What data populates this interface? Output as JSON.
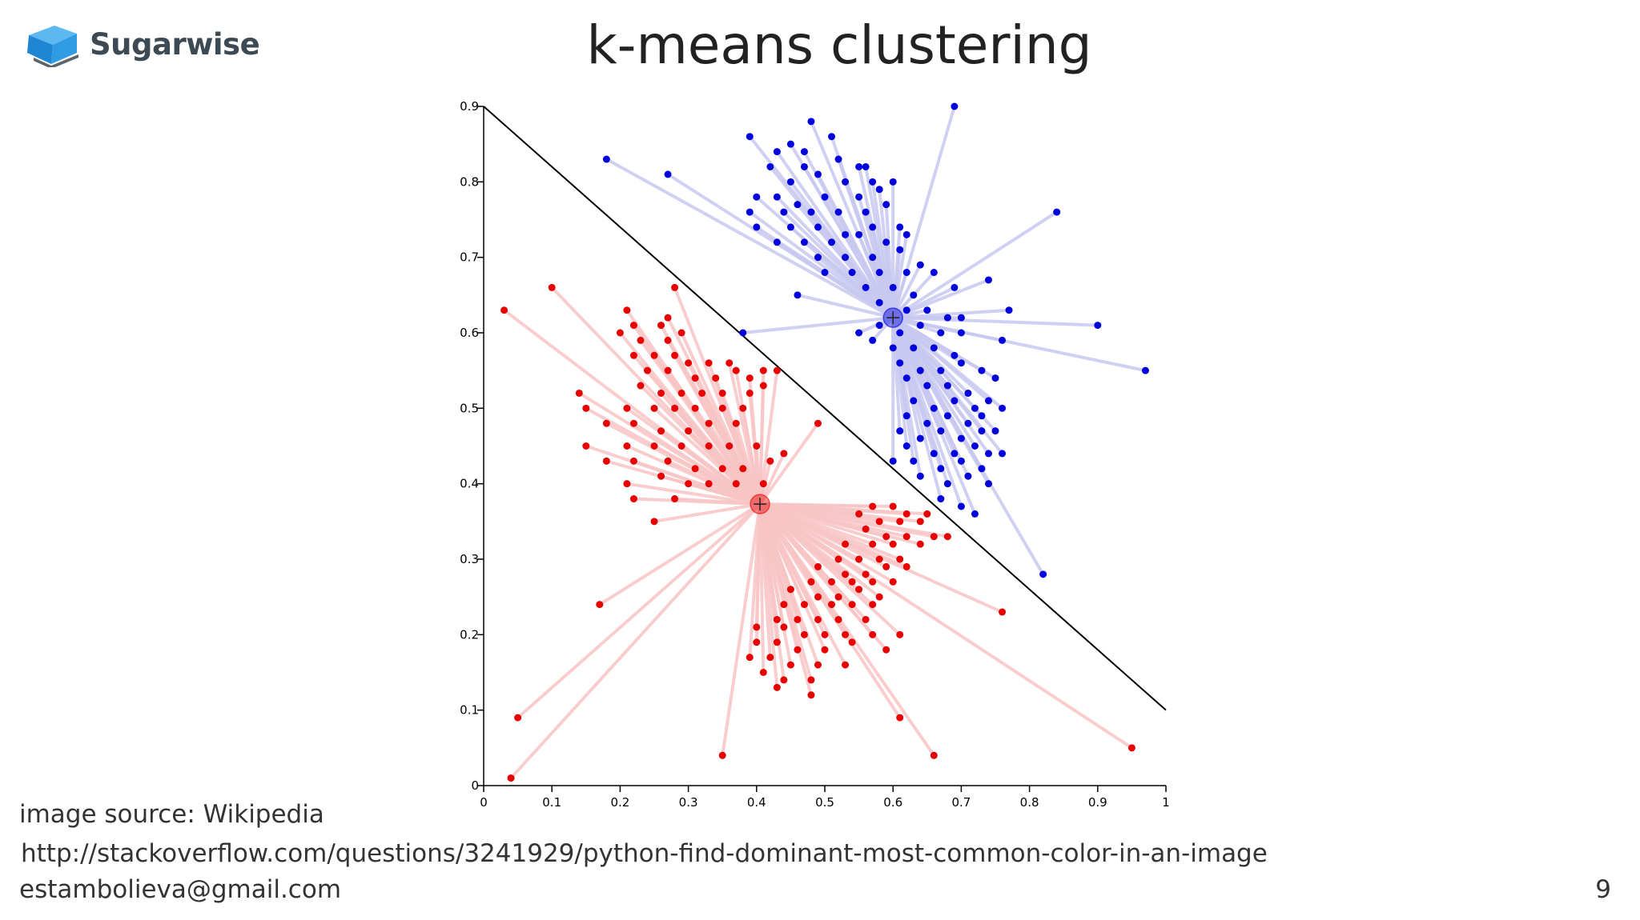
{
  "slide": {
    "brand": "Sugarwise",
    "title": "k-means clustering",
    "image_source": "image source: Wikipedia",
    "url": "http://stackoverflow.com/questions/3241929/python-find-dominant-most-common-color-in-an-image",
    "email": "estambolieva@gmail.com",
    "page_number": "9"
  },
  "colors": {
    "cluster_blue": "#0000dd",
    "cluster_red": "#e80000",
    "line_blue": "#c8c8f0",
    "line_red": "#f8c4c4",
    "boundary": "#000000"
  },
  "chart_data": {
    "type": "scatter",
    "xlim": [
      0,
      1
    ],
    "ylim": [
      0,
      0.9
    ],
    "x_ticks": [
      "0",
      "0.1",
      "0.2",
      "0.3",
      "0.4",
      "0.5",
      "0.6",
      "0.7",
      "0.8",
      "0.9",
      "1"
    ],
    "y_ticks": [
      "0",
      "0.1",
      "0.2",
      "0.3",
      "0.4",
      "0.5",
      "0.6",
      "0.7",
      "0.8",
      "0.9"
    ],
    "boundary": [
      [
        0,
        0.9
      ],
      [
        1,
        0.1
      ]
    ],
    "series": [
      {
        "color": "#0000dd",
        "centroid": [
          0.6,
          0.62
        ],
        "points": [
          [
            0.69,
            0.9
          ],
          [
            0.48,
            0.88
          ],
          [
            0.39,
            0.86
          ],
          [
            0.45,
            0.85
          ],
          [
            0.51,
            0.86
          ],
          [
            0.47,
            0.84
          ],
          [
            0.43,
            0.84
          ],
          [
            0.47,
            0.82
          ],
          [
            0.52,
            0.83
          ],
          [
            0.55,
            0.82
          ],
          [
            0.56,
            0.82
          ],
          [
            0.18,
            0.83
          ],
          [
            0.27,
            0.81
          ],
          [
            0.42,
            0.82
          ],
          [
            0.45,
            0.8
          ],
          [
            0.49,
            0.81
          ],
          [
            0.53,
            0.8
          ],
          [
            0.57,
            0.8
          ],
          [
            0.4,
            0.78
          ],
          [
            0.43,
            0.78
          ],
          [
            0.46,
            0.77
          ],
          [
            0.5,
            0.78
          ],
          [
            0.55,
            0.78
          ],
          [
            0.58,
            0.79
          ],
          [
            0.6,
            0.8
          ],
          [
            0.39,
            0.76
          ],
          [
            0.44,
            0.76
          ],
          [
            0.48,
            0.76
          ],
          [
            0.52,
            0.76
          ],
          [
            0.56,
            0.76
          ],
          [
            0.59,
            0.77
          ],
          [
            0.84,
            0.76
          ],
          [
            0.4,
            0.74
          ],
          [
            0.45,
            0.74
          ],
          [
            0.49,
            0.74
          ],
          [
            0.53,
            0.73
          ],
          [
            0.57,
            0.74
          ],
          [
            0.61,
            0.74
          ],
          [
            0.43,
            0.72
          ],
          [
            0.47,
            0.72
          ],
          [
            0.51,
            0.72
          ],
          [
            0.55,
            0.73
          ],
          [
            0.59,
            0.72
          ],
          [
            0.62,
            0.73
          ],
          [
            0.49,
            0.7
          ],
          [
            0.53,
            0.7
          ],
          [
            0.57,
            0.7
          ],
          [
            0.61,
            0.71
          ],
          [
            0.64,
            0.69
          ],
          [
            0.5,
            0.68
          ],
          [
            0.54,
            0.68
          ],
          [
            0.58,
            0.68
          ],
          [
            0.62,
            0.68
          ],
          [
            0.66,
            0.68
          ],
          [
            0.74,
            0.67
          ],
          [
            0.46,
            0.65
          ],
          [
            0.56,
            0.66
          ],
          [
            0.6,
            0.66
          ],
          [
            0.63,
            0.65
          ],
          [
            0.69,
            0.66
          ],
          [
            0.58,
            0.64
          ],
          [
            0.62,
            0.63
          ],
          [
            0.65,
            0.63
          ],
          [
            0.68,
            0.62
          ],
          [
            0.7,
            0.62
          ],
          [
            0.77,
            0.63
          ],
          [
            0.38,
            0.6
          ],
          [
            0.55,
            0.6
          ],
          [
            0.58,
            0.61
          ],
          [
            0.61,
            0.6
          ],
          [
            0.64,
            0.61
          ],
          [
            0.67,
            0.6
          ],
          [
            0.7,
            0.6
          ],
          [
            0.9,
            0.61
          ],
          [
            0.57,
            0.59
          ],
          [
            0.6,
            0.58
          ],
          [
            0.63,
            0.58
          ],
          [
            0.66,
            0.58
          ],
          [
            0.69,
            0.57
          ],
          [
            0.76,
            0.59
          ],
          [
            0.61,
            0.56
          ],
          [
            0.64,
            0.55
          ],
          [
            0.67,
            0.55
          ],
          [
            0.7,
            0.56
          ],
          [
            0.73,
            0.55
          ],
          [
            0.62,
            0.54
          ],
          [
            0.65,
            0.53
          ],
          [
            0.68,
            0.53
          ],
          [
            0.71,
            0.52
          ],
          [
            0.75,
            0.54
          ],
          [
            0.97,
            0.55
          ],
          [
            0.63,
            0.51
          ],
          [
            0.66,
            0.5
          ],
          [
            0.69,
            0.51
          ],
          [
            0.72,
            0.5
          ],
          [
            0.74,
            0.51
          ],
          [
            0.62,
            0.49
          ],
          [
            0.65,
            0.48
          ],
          [
            0.68,
            0.49
          ],
          [
            0.71,
            0.48
          ],
          [
            0.73,
            0.49
          ],
          [
            0.76,
            0.5
          ],
          [
            0.61,
            0.47
          ],
          [
            0.64,
            0.46
          ],
          [
            0.67,
            0.47
          ],
          [
            0.7,
            0.46
          ],
          [
            0.73,
            0.47
          ],
          [
            0.75,
            0.47
          ],
          [
            0.62,
            0.45
          ],
          [
            0.66,
            0.44
          ],
          [
            0.69,
            0.44
          ],
          [
            0.72,
            0.45
          ],
          [
            0.74,
            0.44
          ],
          [
            0.6,
            0.43
          ],
          [
            0.63,
            0.43
          ],
          [
            0.67,
            0.42
          ],
          [
            0.7,
            0.43
          ],
          [
            0.73,
            0.42
          ],
          [
            0.76,
            0.44
          ],
          [
            0.64,
            0.41
          ],
          [
            0.68,
            0.4
          ],
          [
            0.71,
            0.41
          ],
          [
            0.74,
            0.4
          ],
          [
            0.67,
            0.38
          ],
          [
            0.7,
            0.37
          ],
          [
            0.72,
            0.36
          ],
          [
            0.82,
            0.28
          ]
        ]
      },
      {
        "color": "#e80000",
        "centroid": [
          0.405,
          0.373
        ],
        "points": [
          [
            0.1,
            0.66
          ],
          [
            0.28,
            0.66
          ],
          [
            0.03,
            0.63
          ],
          [
            0.21,
            0.63
          ],
          [
            0.22,
            0.61
          ],
          [
            0.26,
            0.61
          ],
          [
            0.27,
            0.62
          ],
          [
            0.2,
            0.6
          ],
          [
            0.23,
            0.59
          ],
          [
            0.27,
            0.59
          ],
          [
            0.29,
            0.6
          ],
          [
            0.22,
            0.57
          ],
          [
            0.25,
            0.57
          ],
          [
            0.28,
            0.57
          ],
          [
            0.3,
            0.56
          ],
          [
            0.33,
            0.56
          ],
          [
            0.36,
            0.56
          ],
          [
            0.24,
            0.55
          ],
          [
            0.27,
            0.55
          ],
          [
            0.31,
            0.54
          ],
          [
            0.34,
            0.54
          ],
          [
            0.37,
            0.55
          ],
          [
            0.41,
            0.55
          ],
          [
            0.43,
            0.55
          ],
          [
            0.39,
            0.54
          ],
          [
            0.14,
            0.52
          ],
          [
            0.23,
            0.53
          ],
          [
            0.26,
            0.52
          ],
          [
            0.29,
            0.52
          ],
          [
            0.32,
            0.52
          ],
          [
            0.35,
            0.52
          ],
          [
            0.39,
            0.52
          ],
          [
            0.41,
            0.53
          ],
          [
            0.15,
            0.5
          ],
          [
            0.21,
            0.5
          ],
          [
            0.25,
            0.5
          ],
          [
            0.28,
            0.5
          ],
          [
            0.31,
            0.5
          ],
          [
            0.35,
            0.5
          ],
          [
            0.38,
            0.5
          ],
          [
            0.18,
            0.48
          ],
          [
            0.22,
            0.48
          ],
          [
            0.26,
            0.47
          ],
          [
            0.3,
            0.47
          ],
          [
            0.33,
            0.48
          ],
          [
            0.37,
            0.48
          ],
          [
            0.49,
            0.48
          ],
          [
            0.15,
            0.45
          ],
          [
            0.21,
            0.45
          ],
          [
            0.25,
            0.45
          ],
          [
            0.29,
            0.45
          ],
          [
            0.33,
            0.45
          ],
          [
            0.36,
            0.45
          ],
          [
            0.4,
            0.45
          ],
          [
            0.18,
            0.43
          ],
          [
            0.22,
            0.43
          ],
          [
            0.27,
            0.43
          ],
          [
            0.31,
            0.42
          ],
          [
            0.35,
            0.42
          ],
          [
            0.38,
            0.42
          ],
          [
            0.42,
            0.43
          ],
          [
            0.44,
            0.44
          ],
          [
            0.21,
            0.4
          ],
          [
            0.26,
            0.41
          ],
          [
            0.3,
            0.4
          ],
          [
            0.33,
            0.4
          ],
          [
            0.37,
            0.4
          ],
          [
            0.41,
            0.4
          ],
          [
            0.22,
            0.38
          ],
          [
            0.28,
            0.38
          ],
          [
            0.25,
            0.35
          ],
          [
            0.57,
            0.37
          ],
          [
            0.6,
            0.37
          ],
          [
            0.62,
            0.36
          ],
          [
            0.65,
            0.36
          ],
          [
            0.55,
            0.36
          ],
          [
            0.58,
            0.35
          ],
          [
            0.61,
            0.35
          ],
          [
            0.64,
            0.35
          ],
          [
            0.56,
            0.34
          ],
          [
            0.59,
            0.33
          ],
          [
            0.62,
            0.33
          ],
          [
            0.66,
            0.33
          ],
          [
            0.68,
            0.33
          ],
          [
            0.53,
            0.32
          ],
          [
            0.57,
            0.32
          ],
          [
            0.6,
            0.32
          ],
          [
            0.64,
            0.32
          ],
          [
            0.52,
            0.3
          ],
          [
            0.55,
            0.3
          ],
          [
            0.58,
            0.3
          ],
          [
            0.61,
            0.3
          ],
          [
            0.49,
            0.29
          ],
          [
            0.53,
            0.28
          ],
          [
            0.56,
            0.28
          ],
          [
            0.59,
            0.29
          ],
          [
            0.62,
            0.29
          ],
          [
            0.48,
            0.27
          ],
          [
            0.51,
            0.27
          ],
          [
            0.54,
            0.27
          ],
          [
            0.57,
            0.27
          ],
          [
            0.6,
            0.27
          ],
          [
            0.45,
            0.26
          ],
          [
            0.49,
            0.25
          ],
          [
            0.52,
            0.25
          ],
          [
            0.55,
            0.26
          ],
          [
            0.58,
            0.25
          ],
          [
            0.44,
            0.24
          ],
          [
            0.47,
            0.24
          ],
          [
            0.51,
            0.24
          ],
          [
            0.54,
            0.24
          ],
          [
            0.57,
            0.24
          ],
          [
            0.17,
            0.24
          ],
          [
            0.43,
            0.22
          ],
          [
            0.46,
            0.22
          ],
          [
            0.49,
            0.22
          ],
          [
            0.52,
            0.22
          ],
          [
            0.56,
            0.22
          ],
          [
            0.76,
            0.23
          ],
          [
            0.4,
            0.21
          ],
          [
            0.44,
            0.21
          ],
          [
            0.47,
            0.2
          ],
          [
            0.5,
            0.2
          ],
          [
            0.53,
            0.2
          ],
          [
            0.57,
            0.2
          ],
          [
            0.61,
            0.2
          ],
          [
            0.4,
            0.19
          ],
          [
            0.43,
            0.19
          ],
          [
            0.46,
            0.18
          ],
          [
            0.5,
            0.18
          ],
          [
            0.54,
            0.19
          ],
          [
            0.59,
            0.18
          ],
          [
            0.39,
            0.17
          ],
          [
            0.42,
            0.17
          ],
          [
            0.45,
            0.16
          ],
          [
            0.49,
            0.16
          ],
          [
            0.53,
            0.16
          ],
          [
            0.41,
            0.15
          ],
          [
            0.44,
            0.14
          ],
          [
            0.48,
            0.14
          ],
          [
            0.43,
            0.13
          ],
          [
            0.48,
            0.12
          ],
          [
            0.61,
            0.09
          ],
          [
            0.05,
            0.09
          ],
          [
            0.35,
            0.04
          ],
          [
            0.66,
            0.04
          ],
          [
            0.95,
            0.05
          ],
          [
            0.04,
            0.01
          ]
        ]
      }
    ]
  }
}
